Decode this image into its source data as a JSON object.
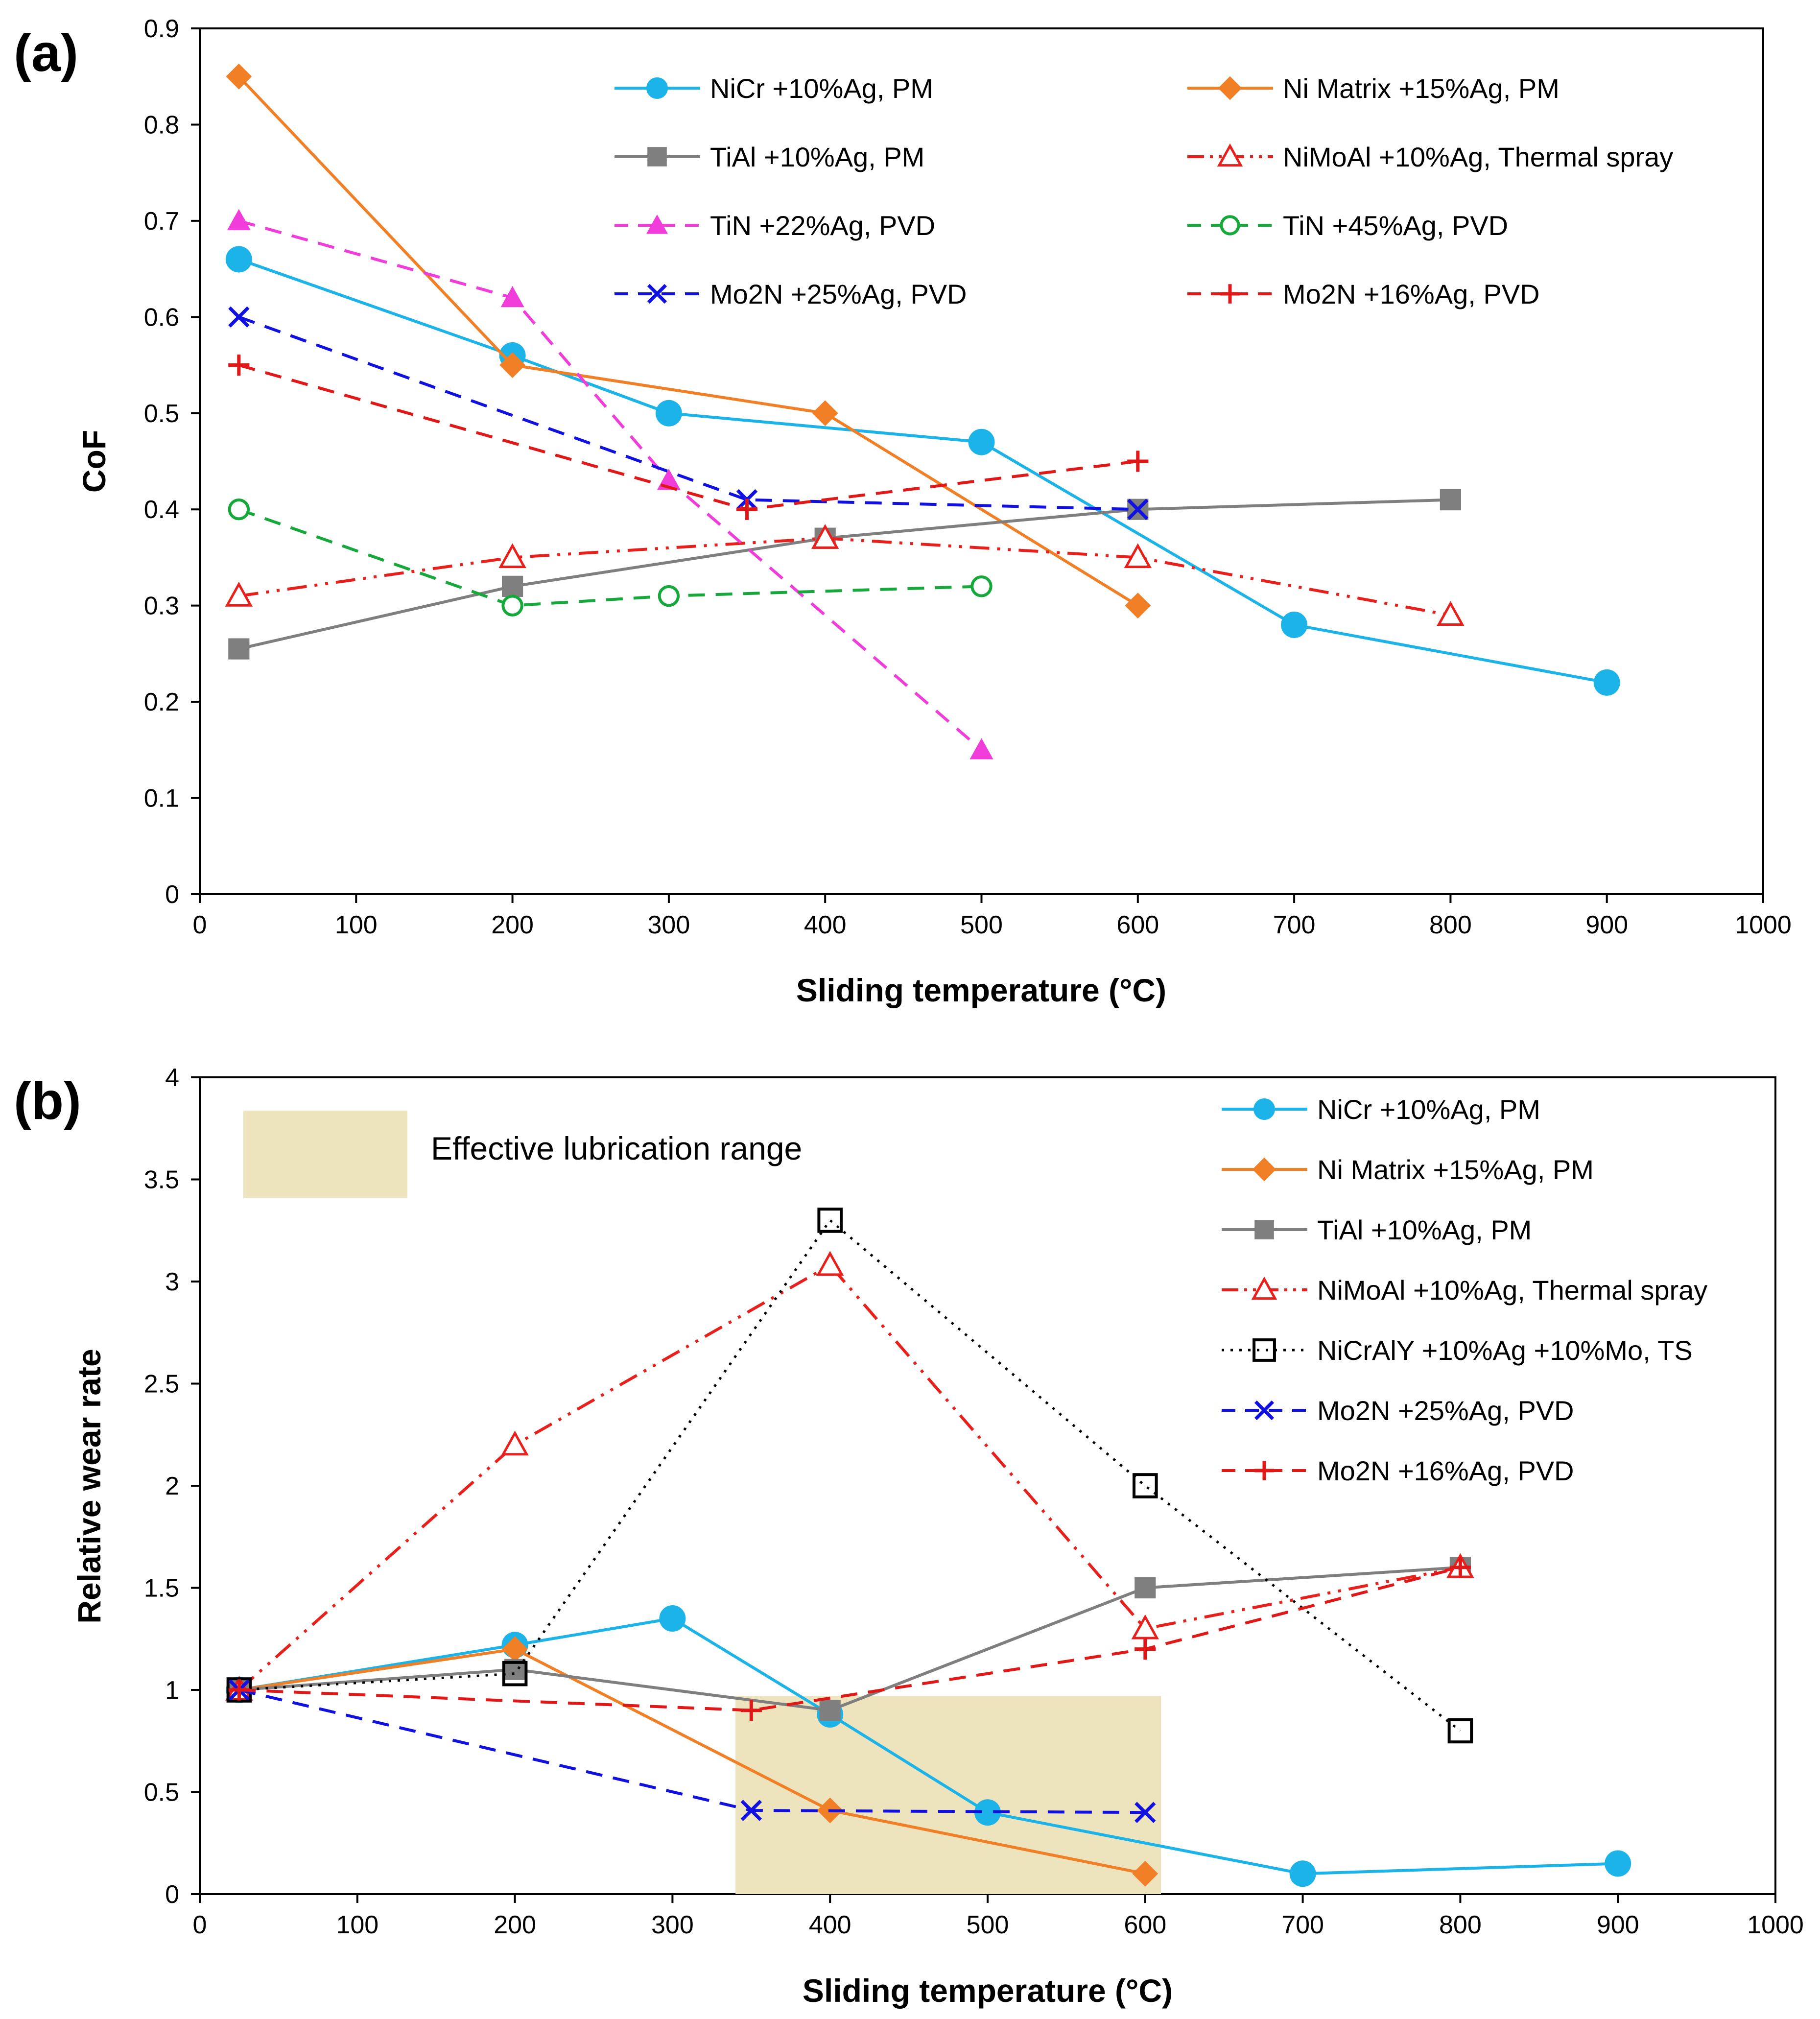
{
  "chart_data": [
    {
      "type": "line",
      "panel_label": "(a)",
      "xlabel": "Sliding temperature (°C)",
      "ylabel": "CoF",
      "xlim": [
        0,
        1000
      ],
      "ylim": [
        0,
        0.9
      ],
      "xticks": [
        0,
        100,
        200,
        300,
        400,
        500,
        600,
        700,
        800,
        900,
        1000
      ],
      "yticks": [
        0,
        0.1,
        0.2,
        0.3,
        0.4,
        0.5,
        0.6,
        0.7,
        0.8,
        0.9
      ],
      "ytick_labels": [
        "0",
        "0.1",
        "0.2",
        "0.3",
        "0.4",
        "0.5",
        "0.6",
        "0.7",
        "0.8",
        "0.9"
      ],
      "legend_position": "top, two columns",
      "series": [
        {
          "name": "NiCr +10%Ag, PM",
          "color": "#1BB3E8",
          "dash": "solid",
          "marker": "circle",
          "x": [
            25,
            200,
            300,
            500,
            700,
            900
          ],
          "y": [
            0.66,
            0.56,
            0.5,
            0.47,
            0.28,
            0.22
          ]
        },
        {
          "name": "Ni Matrix +15%Ag, PM",
          "color": "#F07F26",
          "dash": "solid",
          "marker": "diamond",
          "x": [
            25,
            200,
            400,
            600
          ],
          "y": [
            0.85,
            0.55,
            0.5,
            0.3
          ]
        },
        {
          "name": "TiAl +10%Ag, PM",
          "color": "#7F7F7F",
          "dash": "solid",
          "marker": "square",
          "x": [
            25,
            200,
            400,
            600,
            800
          ],
          "y": [
            0.255,
            0.32,
            0.37,
            0.4,
            0.41
          ]
        },
        {
          "name": "NiMoAl +10%Ag, Thermal spray",
          "color": "#E8201C",
          "dash": "dashdotdot",
          "marker": "triangle-open",
          "x": [
            25,
            200,
            400,
            600,
            800
          ],
          "y": [
            0.31,
            0.35,
            0.37,
            0.35,
            0.29
          ]
        },
        {
          "name": "TiN +22%Ag, PVD",
          "color": "#F03CD8",
          "dash": "dash",
          "marker": "triangle",
          "x": [
            25,
            200,
            300,
            500
          ],
          "y": [
            0.7,
            0.62,
            0.43,
            0.15
          ]
        },
        {
          "name": "TiN +45%Ag, PVD",
          "color": "#16A83A",
          "dash": "dash",
          "marker": "circle-open",
          "x": [
            25,
            200,
            300,
            500
          ],
          "y": [
            0.4,
            0.3,
            0.31,
            0.32
          ]
        },
        {
          "name": "Mo2N +25%Ag, PVD",
          "color": "#1010E0",
          "dash": "dash",
          "marker": "x",
          "x": [
            25,
            350,
            600
          ],
          "y": [
            0.6,
            0.41,
            0.4
          ]
        },
        {
          "name": "Mo2N +16%Ag, PVD",
          "color": "#E01818",
          "dash": "dash",
          "marker": "plus",
          "x": [
            25,
            350,
            600
          ],
          "y": [
            0.55,
            0.4,
            0.45
          ]
        }
      ]
    },
    {
      "type": "line",
      "panel_label": "(b)",
      "xlabel": "Sliding temperature (°C)",
      "ylabel": "Relative wear rate",
      "xlim": [
        0,
        1000
      ],
      "ylim": [
        0,
        4
      ],
      "xticks": [
        0,
        100,
        200,
        300,
        400,
        500,
        600,
        700,
        800,
        900,
        1000
      ],
      "yticks": [
        0,
        0.5,
        1,
        1.5,
        2,
        2.5,
        3,
        3.5,
        4
      ],
      "ytick_labels": [
        "0",
        "0.5",
        "1",
        "1.5",
        "2",
        "2.5",
        "3",
        "3.5",
        "4"
      ],
      "legend_position": "top-right",
      "shaded_region": {
        "label": "Effective lubrication range",
        "x": [
          340,
          610
        ],
        "y": [
          0,
          0.97
        ],
        "color": "#EDE4BE"
      },
      "series": [
        {
          "name": "NiCr +10%Ag, PM",
          "color": "#1BB3E8",
          "dash": "solid",
          "marker": "circle",
          "x": [
            25,
            200,
            300,
            400,
            500,
            700,
            900
          ],
          "y": [
            1.0,
            1.22,
            1.35,
            0.88,
            0.4,
            0.1,
            0.15
          ]
        },
        {
          "name": "Ni Matrix +15%Ag, PM",
          "color": "#F07F26",
          "dash": "solid",
          "marker": "diamond",
          "x": [
            25,
            200,
            400,
            600
          ],
          "y": [
            1.0,
            1.2,
            0.41,
            0.1
          ]
        },
        {
          "name": "TiAl +10%Ag, PM",
          "color": "#7F7F7F",
          "dash": "solid",
          "marker": "square",
          "x": [
            25,
            200,
            400,
            600,
            800
          ],
          "y": [
            1.0,
            1.1,
            0.9,
            1.5,
            1.6
          ]
        },
        {
          "name": "NiMoAl +10%Ag, Thermal spray",
          "color": "#E8201C",
          "dash": "dashdotdot",
          "marker": "triangle-open",
          "x": [
            25,
            200,
            400,
            600,
            800
          ],
          "y": [
            1.0,
            2.2,
            3.08,
            1.3,
            1.6
          ]
        },
        {
          "name": "NiCrAlY +10%Ag +10%Mo, TS",
          "color": "#000000",
          "dash": "dot",
          "marker": "square-open",
          "x": [
            25,
            200,
            400,
            600,
            800
          ],
          "y": [
            1.0,
            1.08,
            3.3,
            2.0,
            0.8
          ]
        },
        {
          "name": "Mo2N +25%Ag, PVD",
          "color": "#1010E0",
          "dash": "dash",
          "marker": "x",
          "x": [
            25,
            350,
            600
          ],
          "y": [
            1.0,
            0.41,
            0.4
          ]
        },
        {
          "name": "Mo2N +16%Ag, PVD",
          "color": "#E01818",
          "dash": "dash",
          "marker": "plus",
          "x": [
            25,
            350,
            600,
            800
          ],
          "y": [
            1.0,
            0.9,
            1.2,
            1.6
          ]
        }
      ]
    }
  ]
}
